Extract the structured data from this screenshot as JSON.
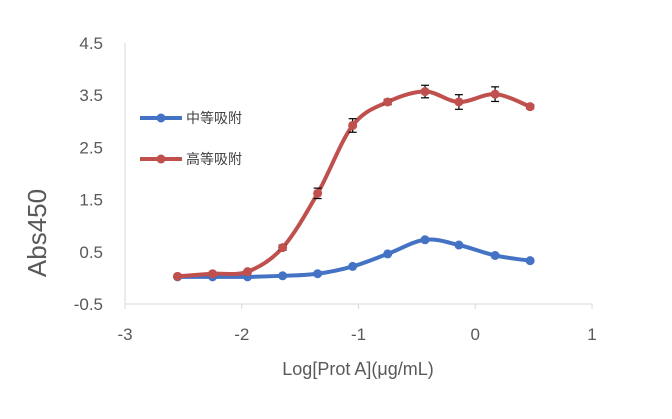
{
  "chart_data": {
    "type": "line",
    "title": "",
    "xlabel": "Log[Prot A](μg/mL)",
    "ylabel": "Abs450",
    "xlim": [
      -3,
      1
    ],
    "ylim": [
      -0.5,
      4.5
    ],
    "xticks": [
      -3,
      -2,
      -1,
      0,
      1
    ],
    "yticks": [
      -0.5,
      0.5,
      1.5,
      2.5,
      3.5,
      4.5
    ],
    "grid": false,
    "legend_position": "top-left",
    "series": [
      {
        "name": "中等吸附",
        "color": "#4472C4",
        "x": [
          -2.55,
          -2.25,
          -1.95,
          -1.65,
          -1.35,
          -1.05,
          -0.75,
          -0.43,
          -0.14,
          0.17,
          0.47
        ],
        "y": [
          0.02,
          0.02,
          0.02,
          0.04,
          0.08,
          0.22,
          0.46,
          0.73,
          0.63,
          0.43,
          0.33
        ],
        "err": [
          0,
          0,
          0,
          0,
          0,
          0,
          0,
          0,
          0,
          0,
          0
        ]
      },
      {
        "name": "高等吸附",
        "color": "#C0504D",
        "x": [
          -2.55,
          -2.25,
          -1.95,
          -1.65,
          -1.35,
          -1.05,
          -0.75,
          -0.43,
          -0.14,
          0.17,
          0.47
        ],
        "y": [
          0.03,
          0.08,
          0.12,
          0.58,
          1.62,
          2.92,
          3.37,
          3.57,
          3.37,
          3.52,
          3.28
        ],
        "err": [
          0,
          0,
          0,
          0.05,
          0.1,
          0.13,
          0.05,
          0.12,
          0.14,
          0.14,
          0.04
        ]
      }
    ]
  }
}
